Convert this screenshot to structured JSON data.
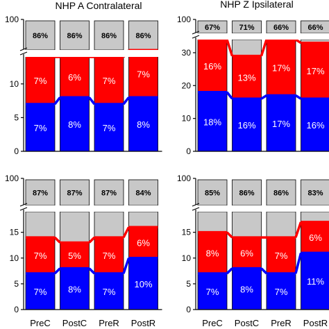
{
  "chart_data": [
    {
      "type": "bar",
      "title": "NHP A Contralateral",
      "categories": [
        "PreC",
        "PostC",
        "PreR",
        "PostR"
      ],
      "series": [
        {
          "values": [
            7,
            8,
            7,
            8
          ],
          "labels": [
            "7%",
            "8%",
            "7%",
            "8%"
          ]
        },
        {
          "values": [
            7,
            6,
            7,
            7
          ],
          "labels": [
            "7%",
            "6%",
            "7%",
            "7%"
          ]
        },
        {
          "values": [
            86,
            86,
            86,
            86
          ],
          "labels": [
            "86%",
            "86%",
            "86%",
            "86%"
          ]
        }
      ],
      "lower_axis": {
        "ylim": [
          0,
          14
        ],
        "ticks": [
          "0",
          "5",
          "10"
        ]
      },
      "upper_axis": {
        "ticks": [
          "100"
        ]
      },
      "axis_break": true
    },
    {
      "type": "bar",
      "title": "NHP Z Ipsilateral",
      "categories": [
        "PreC",
        "PostC",
        "PreR",
        "PostR"
      ],
      "series": [
        {
          "values": [
            18,
            16,
            17,
            16
          ],
          "labels": [
            "18%",
            "16%",
            "17%",
            "16%"
          ]
        },
        {
          "values": [
            16,
            13,
            17,
            17
          ],
          "labels": [
            "16%",
            "13%",
            "17%",
            "17%"
          ]
        },
        {
          "values": [
            67,
            71,
            66,
            66
          ],
          "labels": [
            "67%",
            "71%",
            "66%",
            "66%"
          ]
        }
      ],
      "lower_axis": {
        "ylim": [
          0,
          34
        ],
        "ticks": [
          "0",
          "10",
          "20",
          "30"
        ]
      },
      "upper_axis": {
        "ticks": [
          "100"
        ]
      },
      "axis_break": true
    },
    {
      "type": "bar",
      "title": "",
      "categories": [
        "PreC",
        "PostC",
        "PreR",
        "PostR"
      ],
      "series": [
        {
          "values": [
            7,
            8,
            7,
            10
          ],
          "labels": [
            "7%",
            "8%",
            "7%",
            "10%"
          ]
        },
        {
          "values": [
            7,
            5,
            7,
            6
          ],
          "labels": [
            "7%",
            "5%",
            "7%",
            "6%"
          ]
        },
        {
          "values": [
            87,
            87,
            87,
            84
          ],
          "labels": [
            "87%",
            "87%",
            "87%",
            "84%"
          ]
        }
      ],
      "lower_axis": {
        "ylim": [
          0,
          19
        ],
        "ticks": [
          "0",
          "5",
          "10",
          "15"
        ]
      },
      "upper_axis": {
        "ticks": [
          "100"
        ]
      },
      "axis_break": true
    },
    {
      "type": "bar",
      "title": "",
      "categories": [
        "PreC",
        "PostC",
        "PreR",
        "PostR"
      ],
      "series": [
        {
          "values": [
            7,
            8,
            7,
            11
          ],
          "labels": [
            "7%",
            "8%",
            "7%",
            "11%"
          ]
        },
        {
          "values": [
            8,
            6,
            7,
            6
          ],
          "labels": [
            "8%",
            "6%",
            "7%",
            "6%"
          ]
        },
        {
          "values": [
            85,
            86,
            86,
            83
          ],
          "labels": [
            "85%",
            "86%",
            "86%",
            "83%"
          ]
        }
      ],
      "lower_axis": {
        "ylim": [
          0,
          19
        ],
        "ticks": [
          "0",
          "5",
          "10",
          "15"
        ]
      },
      "upper_axis": {
        "ticks": [
          "100"
        ]
      },
      "axis_break": true
    }
  ],
  "colors": {
    "bottom": "#0000ff",
    "middle": "#ff0000",
    "top": "#c8c8c8",
    "outline": "#000000"
  }
}
